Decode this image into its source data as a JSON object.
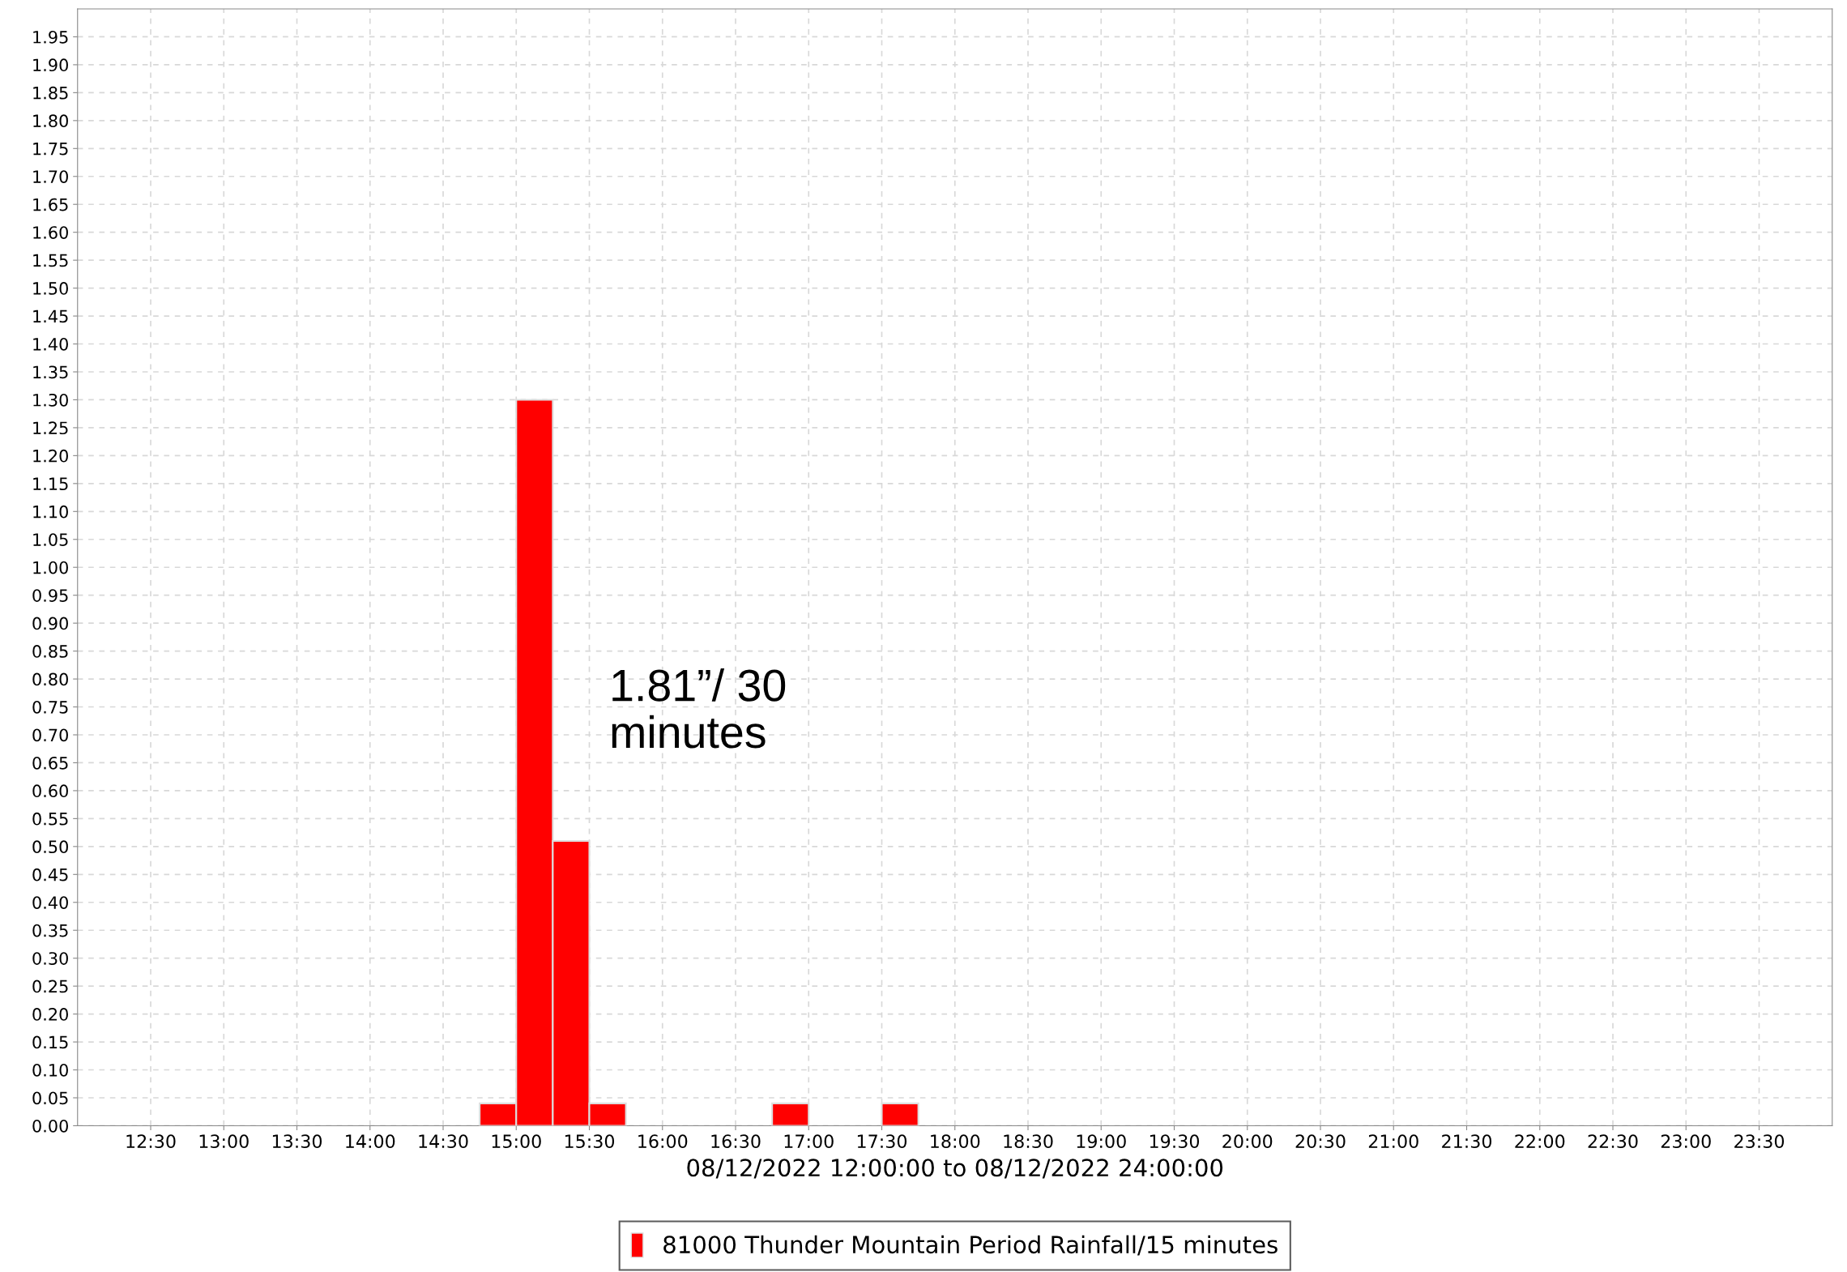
{
  "chart_data": {
    "type": "histogram",
    "xlabel": "08/12/2022 12:00:00 to 08/12/2022 24:00:00",
    "annotations": [
      "1.81”/ 30 minutes"
    ],
    "bins": [
      14.75,
      15.0,
      15.25,
      15.5,
      15.75,
      16.0,
      16.25,
      16.5,
      16.75,
      17.0,
      17.25,
      17.5,
      17.75
    ],
    "series": [
      {
        "name": "81000 Thunder Mountain Period Rainfall/15 minutes",
        "color": "#ff0000",
        "values": [
          0.04,
          1.3,
          0.51,
          0.04,
          0,
          0,
          0,
          0,
          0.04,
          0,
          0,
          0.04
        ]
      }
    ],
    "xlim": [
      12,
      24
    ],
    "xticks": [
      {
        "value": 12.5,
        "label": "12:30"
      },
      {
        "value": 13,
        "label": "13:00"
      },
      {
        "value": 13.5,
        "label": "13:30"
      },
      {
        "value": 14,
        "label": "14:00"
      },
      {
        "value": 14.5,
        "label": "14:30"
      },
      {
        "value": 15,
        "label": "15:00"
      },
      {
        "value": 15.5,
        "label": "15:30"
      },
      {
        "value": 16,
        "label": "16:00"
      },
      {
        "value": 16.5,
        "label": "16:30"
      },
      {
        "value": 17,
        "label": "17:00"
      },
      {
        "value": 17.5,
        "label": "17:30"
      },
      {
        "value": 18,
        "label": "18:00"
      },
      {
        "value": 18.5,
        "label": "18:30"
      },
      {
        "value": 19,
        "label": "19:00"
      },
      {
        "value": 19.5,
        "label": "19:30"
      },
      {
        "value": 20,
        "label": "20:00"
      },
      {
        "value": 20.5,
        "label": "20:30"
      },
      {
        "value": 21,
        "label": "21:00"
      },
      {
        "value": 21.5,
        "label": "21:30"
      },
      {
        "value": 22,
        "label": "22:00"
      },
      {
        "value": 22.5,
        "label": "22:30"
      },
      {
        "value": 23,
        "label": "23:00"
      },
      {
        "value": 23.5,
        "label": "23:30"
      }
    ],
    "ylim": [
      0,
      2.0
    ],
    "yticks": [
      {
        "value": 0,
        "label": "0.00"
      },
      {
        "value": 0.05,
        "label": "0.05"
      },
      {
        "value": 0.1,
        "label": "0.10"
      },
      {
        "value": 0.15,
        "label": "0.15"
      },
      {
        "value": 0.2,
        "label": "0.20"
      },
      {
        "value": 0.25,
        "label": "0.25"
      },
      {
        "value": 0.3,
        "label": "0.30"
      },
      {
        "value": 0.35,
        "label": "0.35"
      },
      {
        "value": 0.4,
        "label": "0.40"
      },
      {
        "value": 0.45,
        "label": "0.45"
      },
      {
        "value": 0.5,
        "label": "0.50"
      },
      {
        "value": 0.55,
        "label": "0.55"
      },
      {
        "value": 0.6,
        "label": "0.60"
      },
      {
        "value": 0.65,
        "label": "0.65"
      },
      {
        "value": 0.7,
        "label": "0.70"
      },
      {
        "value": 0.75,
        "label": "0.75"
      },
      {
        "value": 0.8,
        "label": "0.80"
      },
      {
        "value": 0.85,
        "label": "0.85"
      },
      {
        "value": 0.9,
        "label": "0.90"
      },
      {
        "value": 0.95,
        "label": "0.95"
      },
      {
        "value": 1.0,
        "label": "1.00"
      },
      {
        "value": 1.05,
        "label": "1.05"
      },
      {
        "value": 1.1,
        "label": "1.10"
      },
      {
        "value": 1.15,
        "label": "1.15"
      },
      {
        "value": 1.2,
        "label": "1.20"
      },
      {
        "value": 1.25,
        "label": "1.25"
      },
      {
        "value": 1.3,
        "label": "1.30"
      },
      {
        "value": 1.35,
        "label": "1.35"
      },
      {
        "value": 1.4,
        "label": "1.40"
      },
      {
        "value": 1.45,
        "label": "1.45"
      },
      {
        "value": 1.5,
        "label": "1.50"
      },
      {
        "value": 1.55,
        "label": "1.55"
      },
      {
        "value": 1.6,
        "label": "1.60"
      },
      {
        "value": 1.65,
        "label": "1.65"
      },
      {
        "value": 1.7,
        "label": "1.70"
      },
      {
        "value": 1.75,
        "label": "1.75"
      },
      {
        "value": 1.8,
        "label": "1.80"
      },
      {
        "value": 1.85,
        "label": "1.85"
      },
      {
        "value": 1.9,
        "label": "1.90"
      },
      {
        "value": 1.95,
        "label": "1.95"
      }
    ],
    "grid": true,
    "legend": "bottom"
  }
}
